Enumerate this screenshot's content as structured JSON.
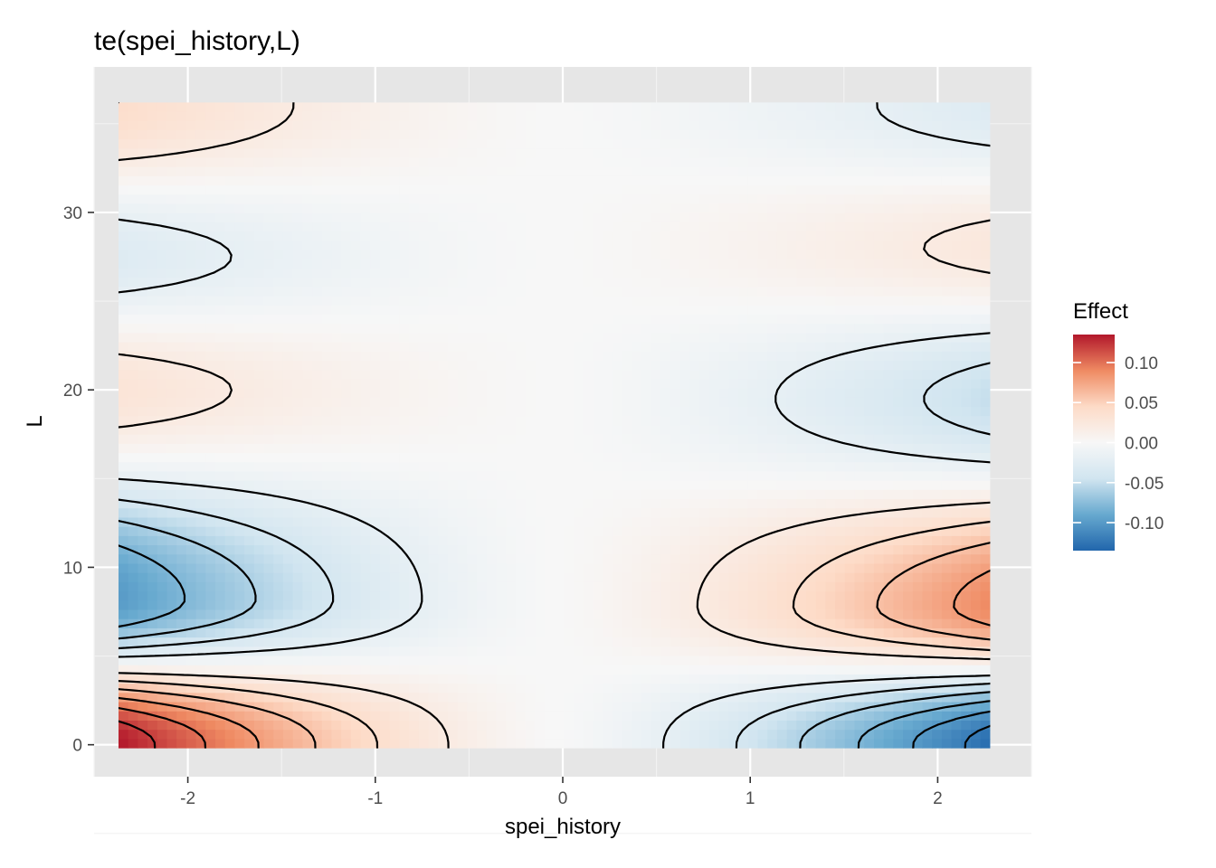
{
  "chart_data": {
    "type": "heatmap",
    "title": "te(spei_history,L)",
    "xlabel": "spei_history",
    "ylabel": "L",
    "xlim": [
      -2.5,
      2.5
    ],
    "ylim": [
      -1.8,
      38.2
    ],
    "data_extent": {
      "x": [
        -2.37,
        2.28
      ],
      "y": [
        -0.2,
        36.2
      ]
    },
    "x_ticks": [
      -2,
      -1,
      0,
      1,
      2
    ],
    "x_tick_labels": [
      "-2",
      "-1",
      "0",
      "1",
      "2"
    ],
    "y_ticks": [
      0,
      10,
      20,
      30
    ],
    "y_tick_labels": [
      "0",
      "10",
      "20",
      "30"
    ],
    "fill_variable": "Effect",
    "legend": {
      "title": "Effect",
      "range": [
        -0.135,
        0.135
      ],
      "breaks": [
        0.1,
        0.05,
        0.0,
        -0.05,
        -0.1
      ],
      "labels": [
        "0.10",
        "0.05",
        "0.00",
        "-0.05",
        "-0.10"
      ],
      "position": "right"
    },
    "colorscale": [
      "#2166ac",
      "#67a9cf",
      "#d1e5f0",
      "#f7f7f7",
      "#fddbc7",
      "#ef8a62",
      "#b2182b"
    ],
    "contour_levels": [
      -0.12,
      -0.1,
      -0.08,
      -0.06,
      -0.04,
      -0.02,
      0,
      0.02,
      0.04,
      0.06,
      0.08,
      0.1,
      0.12
    ],
    "effect_extremes": [
      {
        "x": -2.3,
        "L": 0,
        "effect": 0.135
      },
      {
        "x": 2.2,
        "L": 0,
        "effect": -0.13
      },
      {
        "x": -2.3,
        "L": 8.2,
        "effect": -0.1
      },
      {
        "x": 2.2,
        "L": 7.8,
        "effect": 0.09
      },
      {
        "x": -2.3,
        "L": 20,
        "effect": 0.03
      },
      {
        "x": 2.2,
        "L": 19.5,
        "effect": -0.05
      },
      {
        "x": -2.3,
        "L": 27.5,
        "effect": -0.03
      },
      {
        "x": 2.2,
        "L": 28,
        "effect": 0.025
      },
      {
        "x": -2.3,
        "L": 36,
        "effect": 0.04
      },
      {
        "x": 2.2,
        "L": 36,
        "effect": -0.03
      }
    ]
  },
  "colors": {
    "panel_background": "#e6e6e6",
    "grid_major": "#ffffff",
    "grid_minor": "#f2f2f2",
    "contour_line": "#000000"
  }
}
